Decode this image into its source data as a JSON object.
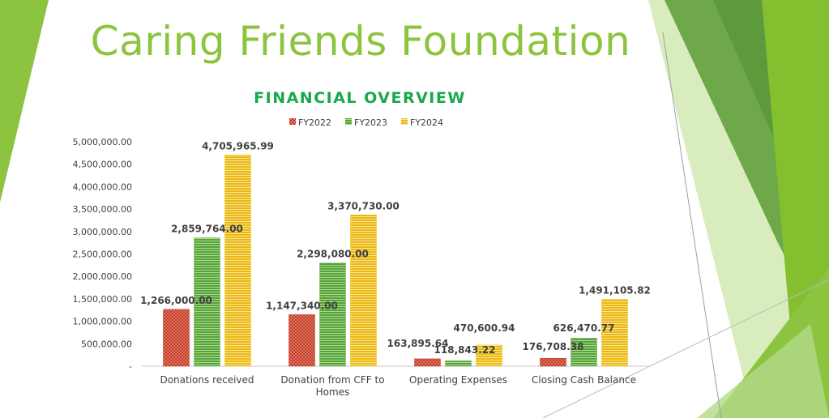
{
  "slide": {
    "title": "Caring Friends Foundation"
  },
  "colors": {
    "fy2022": "#c0392b",
    "fy2023": "#6ab04c",
    "fy2024": "#f1c40f",
    "chartTitle": "#19a84a",
    "slideTitle": "#8cc43f"
  },
  "chart_data": {
    "type": "bar",
    "title": "FINANCIAL OVERVIEW",
    "xlabel": "",
    "ylabel": "",
    "categories": [
      "Donations received",
      "Donation from CFF to Homes",
      "Operating Expenses",
      "Closing Cash Balance"
    ],
    "category_lines": [
      [
        "Donations received"
      ],
      [
        "Donation from CFF to",
        "Homes"
      ],
      [
        "Operating Expenses"
      ],
      [
        "Closing Cash Balance"
      ]
    ],
    "series": [
      {
        "name": "FY2022",
        "values": [
          1266000.0,
          1147340.0,
          163895.64,
          176708.38
        ],
        "labels": [
          "1,266,000.00",
          "1,147,340.00",
          "163,895.64",
          "176,708.38"
        ]
      },
      {
        "name": "FY2023",
        "values": [
          2859764.0,
          2298080.0,
          118843.22,
          626470.77
        ],
        "labels": [
          "2,859,764.00",
          "2,298,080.00",
          "118,843.22",
          "626,470.77"
        ]
      },
      {
        "name": "FY2024",
        "values": [
          4705965.99,
          3370730.0,
          470600.94,
          1491105.82
        ],
        "labels": [
          "4,705,965.99",
          "3,370,730.00",
          "470,600.94",
          "1,491,105.82"
        ]
      }
    ],
    "ylim": [
      0,
      5000000
    ],
    "yticks": [
      0,
      500000,
      1000000,
      1500000,
      2000000,
      2500000,
      3000000,
      3500000,
      4000000,
      4500000,
      5000000
    ],
    "ytick_labels": [
      "-",
      "500,000.00",
      "1,000,000.00",
      "1,500,000.00",
      "2,000,000.00",
      "2,500,000.00",
      "3,000,000.00",
      "3,500,000.00",
      "4,000,000.00",
      "4,500,000.00",
      "5,000,000.00"
    ],
    "grid": false,
    "legend": "top-center"
  }
}
